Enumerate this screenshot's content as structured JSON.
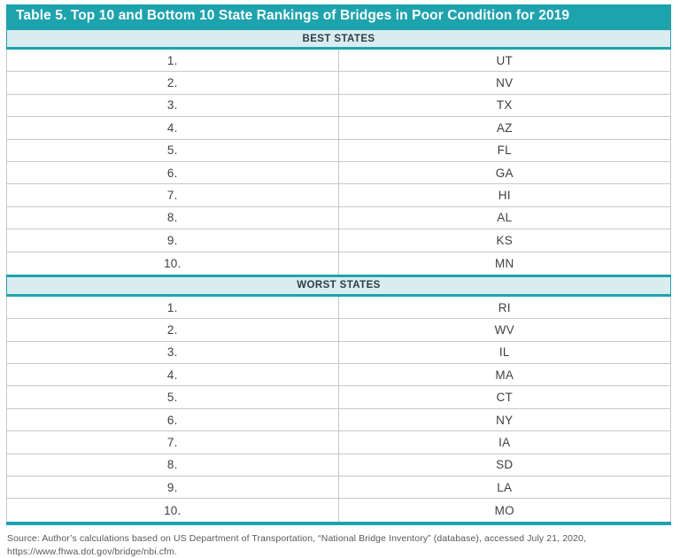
{
  "title": "Table 5. Top 10 and Bottom 10 State Rankings of Bridges in Poor Condition for 2019",
  "sections": [
    {
      "header": "BEST STATES",
      "rows": [
        {
          "rank": "1.",
          "state": "UT"
        },
        {
          "rank": "2.",
          "state": "NV"
        },
        {
          "rank": "3.",
          "state": "TX"
        },
        {
          "rank": "4.",
          "state": "AZ"
        },
        {
          "rank": "5.",
          "state": "FL"
        },
        {
          "rank": "6.",
          "state": "GA"
        },
        {
          "rank": "7.",
          "state": "HI"
        },
        {
          "rank": "8.",
          "state": "AL"
        },
        {
          "rank": "9.",
          "state": "KS"
        },
        {
          "rank": "10.",
          "state": "MN"
        }
      ]
    },
    {
      "header": "WORST STATES",
      "rows": [
        {
          "rank": "1.",
          "state": "RI"
        },
        {
          "rank": "2.",
          "state": "WV"
        },
        {
          "rank": "3.",
          "state": "IL"
        },
        {
          "rank": "4.",
          "state": "MA"
        },
        {
          "rank": "5.",
          "state": "CT"
        },
        {
          "rank": "6.",
          "state": "NY"
        },
        {
          "rank": "7.",
          "state": "IA"
        },
        {
          "rank": "8.",
          "state": "SD"
        },
        {
          "rank": "9.",
          "state": "LA"
        },
        {
          "rank": "10.",
          "state": "MO"
        }
      ]
    }
  ],
  "source": {
    "line1": "Source: Author’s calculations based on US Department of Transportation, “National Bridge Inventory” (database), accessed July 21, 2020,",
    "line2": "https://www.fhwa.dot.gov/bridge/nbi.cfm."
  },
  "colors": {
    "teal": "#1DA3AE",
    "band_bg": "#D9ECEF",
    "border_gray": "#C8C8C8",
    "row_text": "#414042",
    "band_text": "#2B3E4A",
    "source_text": "#58595B"
  }
}
